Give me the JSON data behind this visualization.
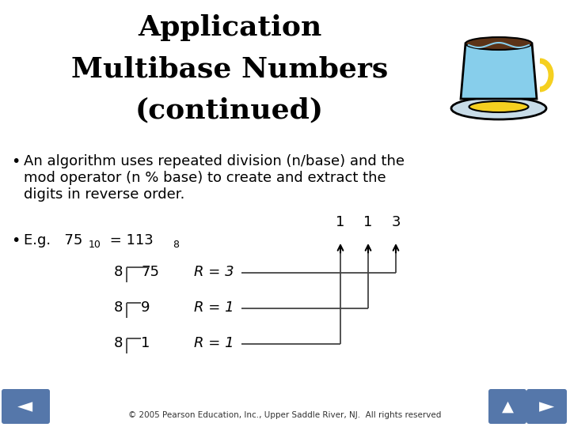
{
  "title_line1": "Application",
  "title_line2": "Multibase Numbers",
  "title_line3": "(continued)",
  "bullet1": "An algorithm uses repeated division (n/base) and the\nmod operator (n % base) to create and extract the\ndigits in reverse order.",
  "bg_color": "#ffffff",
  "text_color": "#000000",
  "title_color": "#000000",
  "nav_color": "#5577aa",
  "footer_text": "© 2005 Pearson Education, Inc., Upper Saddle River, NJ.  All rights reserved",
  "division_rows": [
    {
      "divisor": "8",
      "dividend": "75",
      "remainder": "R = 3"
    },
    {
      "divisor": "8",
      "dividend": "9",
      "remainder": "R = 1"
    },
    {
      "divisor": "8",
      "dividend": "1",
      "remainder": "R = 1"
    }
  ],
  "result_digits": [
    "1",
    "1",
    "3"
  ],
  "cup_color": "#87ceeb",
  "saucer_color": "#e8e8f0",
  "handle_color": "#f5d020",
  "coffee_color": "#5c3317"
}
